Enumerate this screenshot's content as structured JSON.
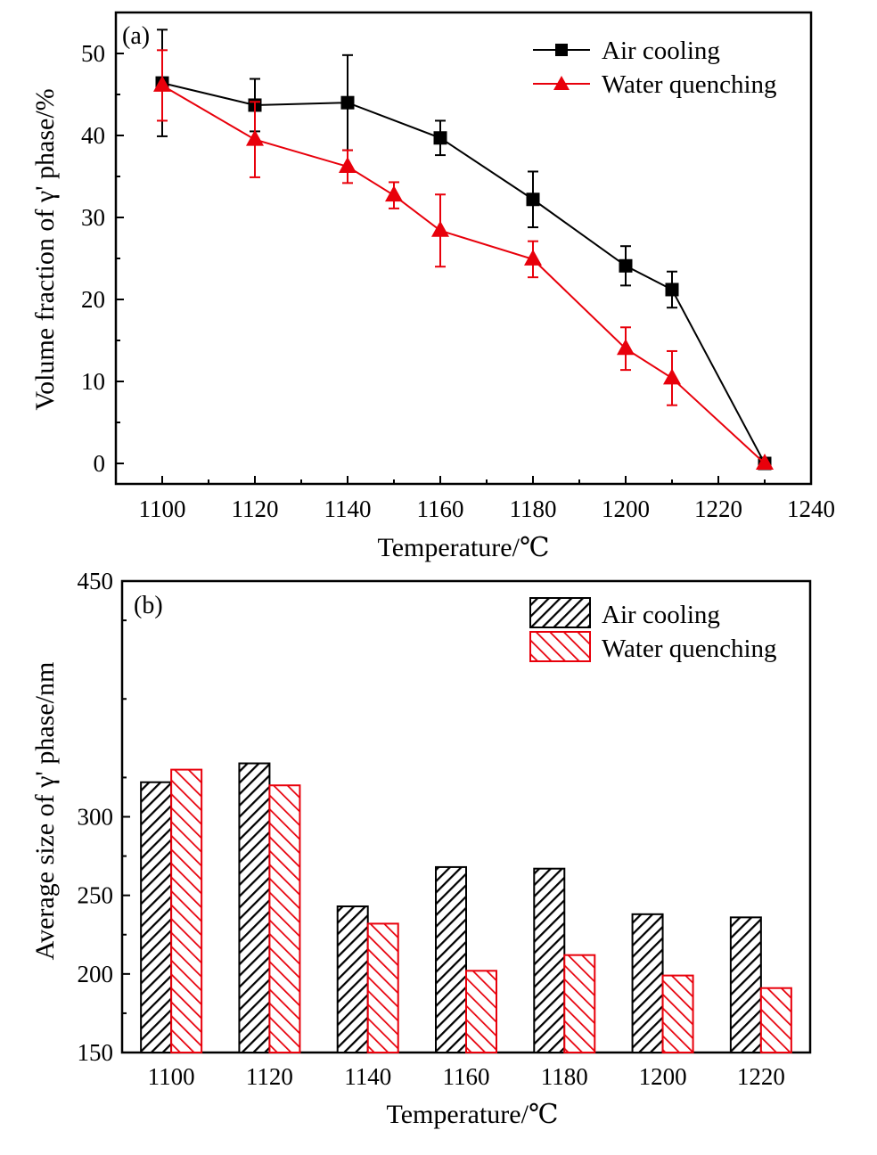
{
  "chart_data": [
    {
      "type": "line",
      "panel_label": "(a)",
      "xlabel": "Temperature/℃",
      "ylabel": "Volume fraction of  γ' phase/%",
      "xlim": [
        1090,
        1240
      ],
      "ylim": [
        -2.5,
        55
      ],
      "xticks": [
        1100,
        1120,
        1140,
        1160,
        1180,
        1200,
        1220,
        1240
      ],
      "yticks": [
        0,
        10,
        20,
        30,
        40,
        50
      ],
      "legend_position": "top-right",
      "series": [
        {
          "name": "Air cooling",
          "color": "#000000",
          "marker": "square",
          "x": [
            1100,
            1120,
            1140,
            1160,
            1180,
            1200,
            1210,
            1230
          ],
          "y": [
            46.4,
            43.7,
            44.0,
            39.7,
            32.2,
            24.1,
            21.2,
            0
          ],
          "err": [
            6.5,
            3.2,
            5.8,
            2.1,
            3.4,
            2.4,
            2.2,
            0
          ]
        },
        {
          "name": "Water quenching",
          "color": "#e8000b",
          "marker": "triangle",
          "x": [
            1100,
            1120,
            1140,
            1150,
            1160,
            1180,
            1200,
            1210,
            1230
          ],
          "y": [
            46.1,
            39.5,
            36.2,
            32.7,
            28.4,
            24.9,
            14.0,
            10.4,
            0
          ],
          "err": [
            4.3,
            4.6,
            2.0,
            1.6,
            4.4,
            2.2,
            2.6,
            3.3,
            0
          ]
        }
      ]
    },
    {
      "type": "bar",
      "panel_label": "(b)",
      "xlabel": "Temperature/℃",
      "ylabel": "Average size of  γ' phase/nm",
      "categories": [
        "1100",
        "1120",
        "1140",
        "1160",
        "1180",
        "1200",
        "1220"
      ],
      "ylim": [
        150,
        450
      ],
      "yticks": [
        150,
        200,
        250,
        300,
        450
      ],
      "legend_position": "top-right",
      "series": [
        {
          "name": "Air cooling",
          "color": "#000000",
          "pattern": "diagonal-hatch",
          "values": [
            322,
            334,
            243,
            268,
            267,
            238,
            236
          ]
        },
        {
          "name": "Water quenching",
          "color": "#e8000b",
          "pattern": "diagonal-hatch",
          "values": [
            330,
            320,
            232,
            202,
            212,
            199,
            191
          ]
        }
      ]
    }
  ]
}
